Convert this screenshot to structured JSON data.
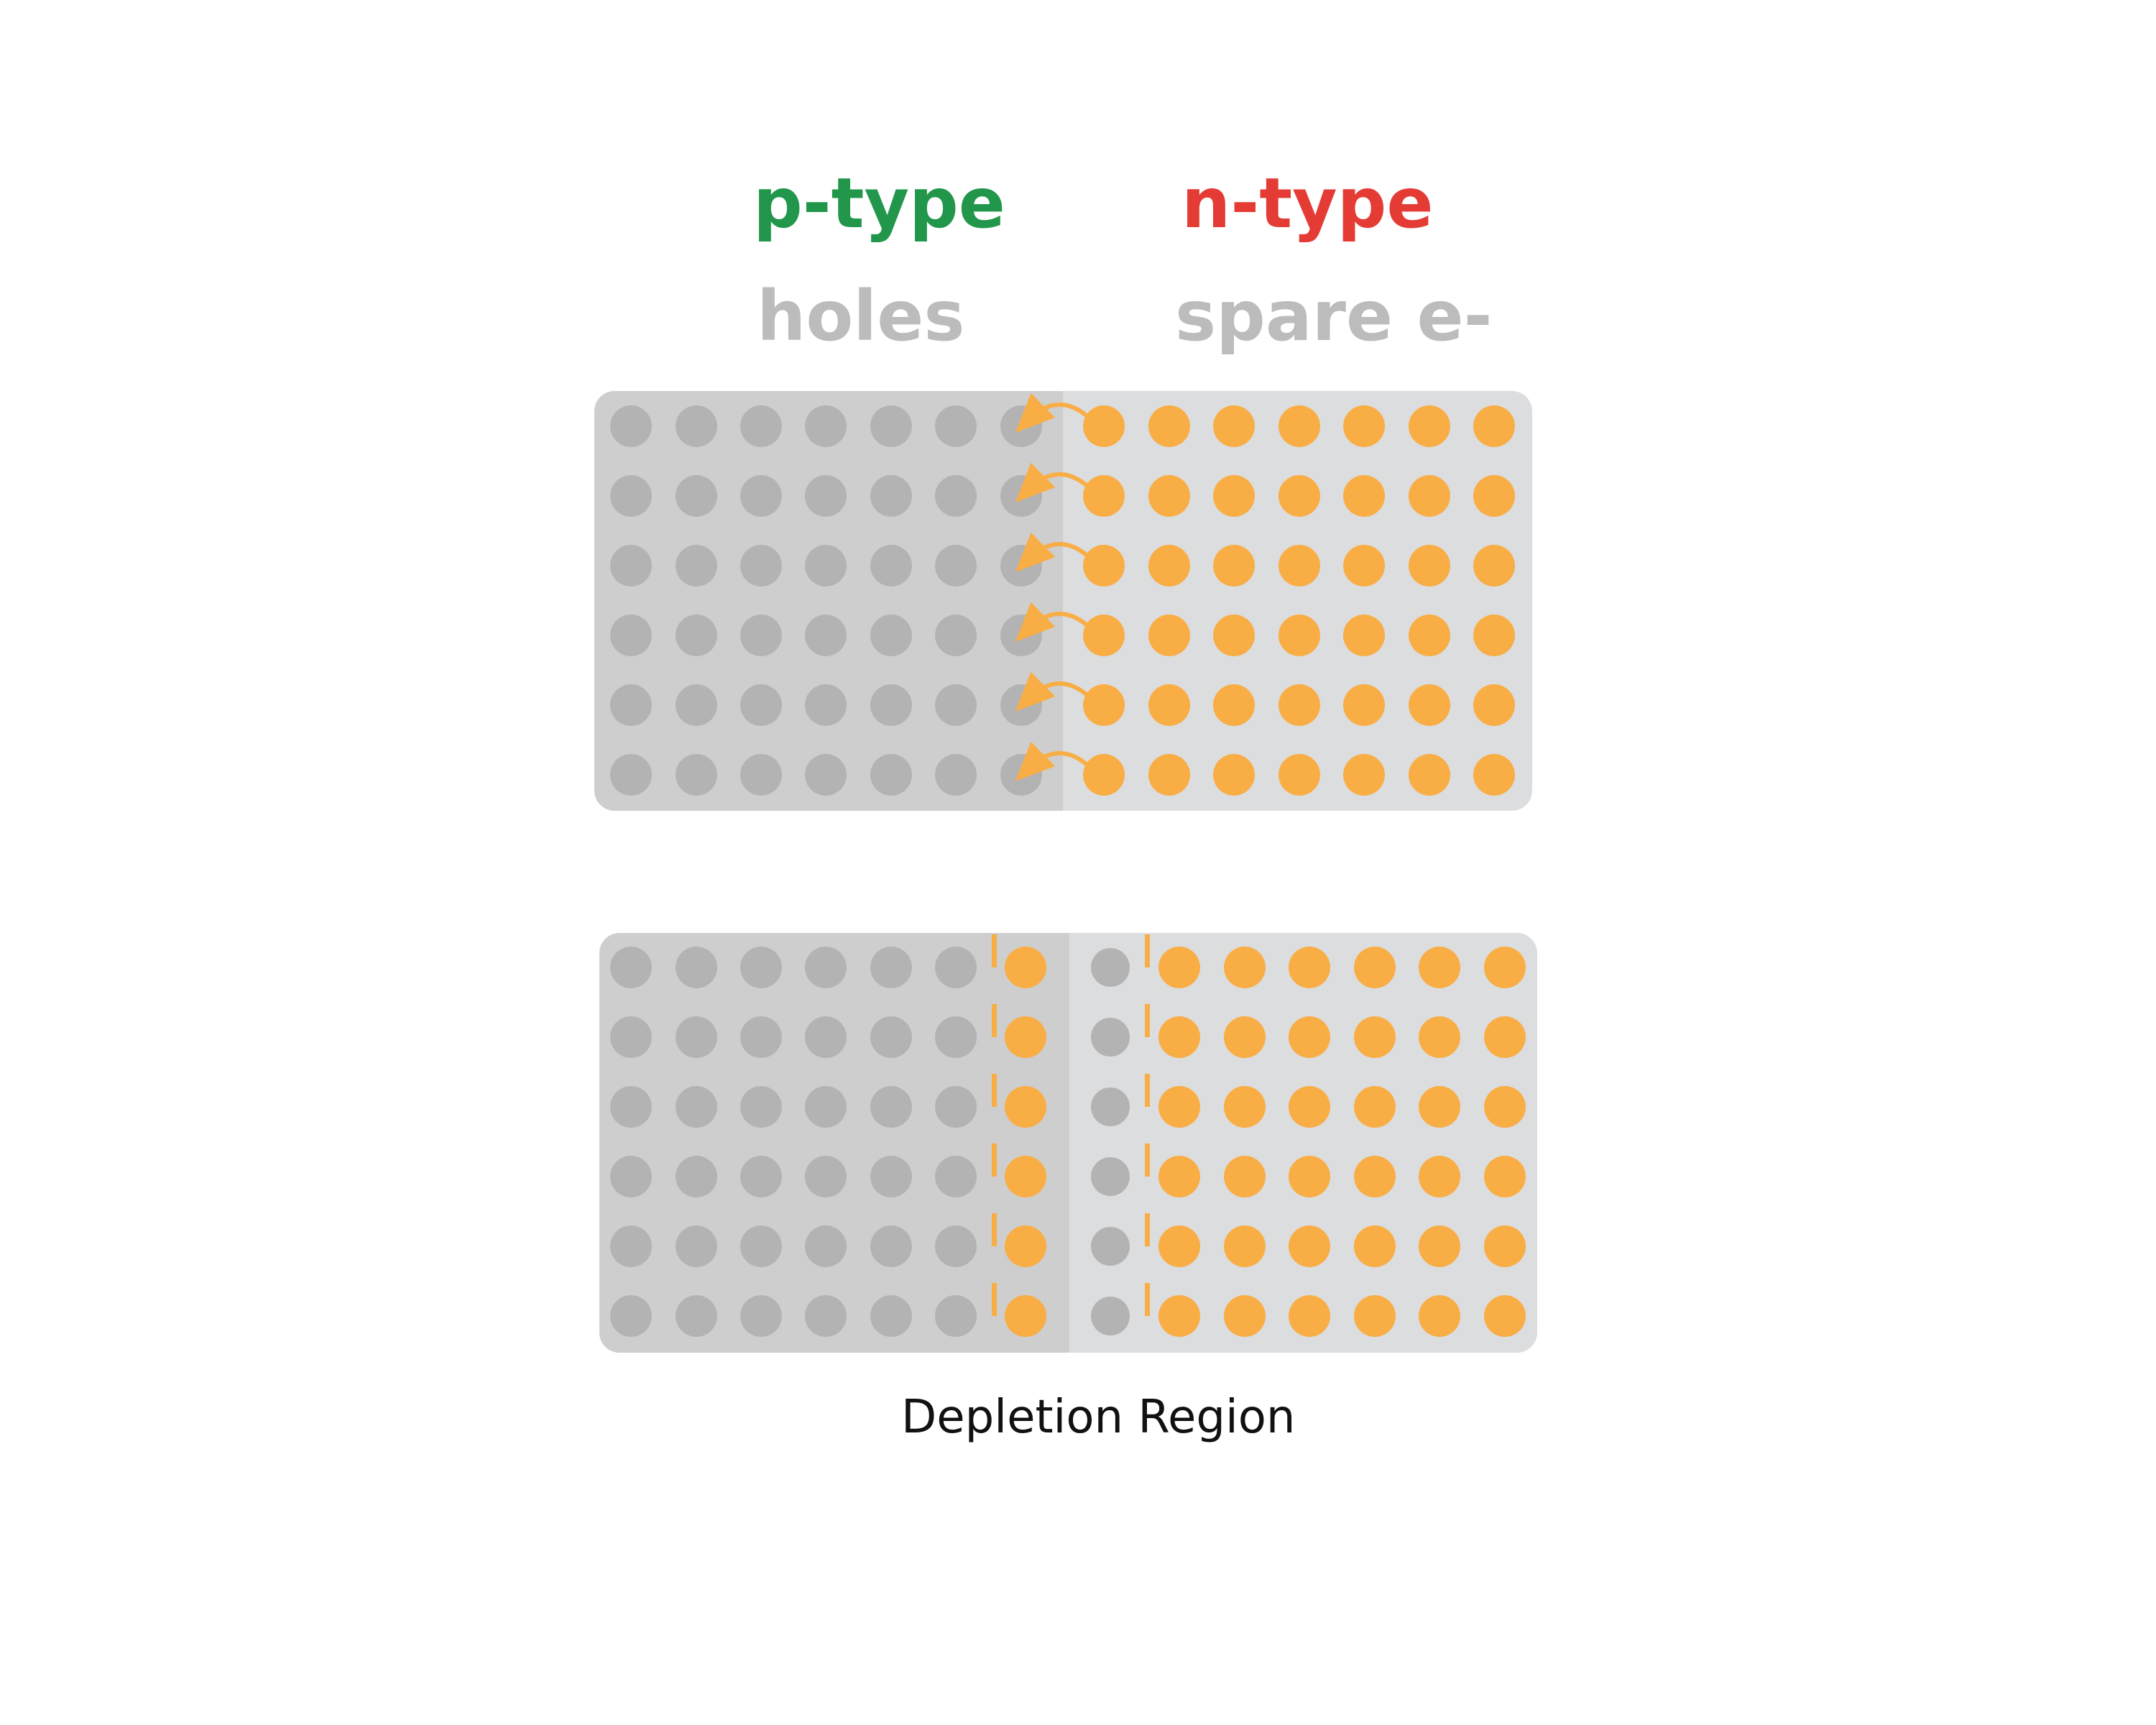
{
  "labels": {
    "p_type": "p-type",
    "n_type": "n-type",
    "p_carrier": "holes",
    "n_carrier": "spare e-",
    "caption": "Depletion Region"
  },
  "colors": {
    "p_type": "#22974b",
    "n_type": "#e43c35",
    "carrier_label": "#bcbcbc",
    "caption": "#111111",
    "p_region_bg": "#cecece",
    "n_region_bg": "#dcdddf",
    "hole_dot": "#b3b3b3",
    "electron_dot": "#f9ad45"
  },
  "top_panel": {
    "rows": 6,
    "p_columns": 7,
    "n_columns": 7,
    "arrows": "electron-to-hole",
    "arrow_rows": 6
  },
  "bottom_panel": {
    "rows": 6,
    "p_columns": 7,
    "n_columns": 7,
    "p_side_electron_columns": 1,
    "n_side_hole_columns": 1,
    "boundary_markers": "dashed"
  }
}
